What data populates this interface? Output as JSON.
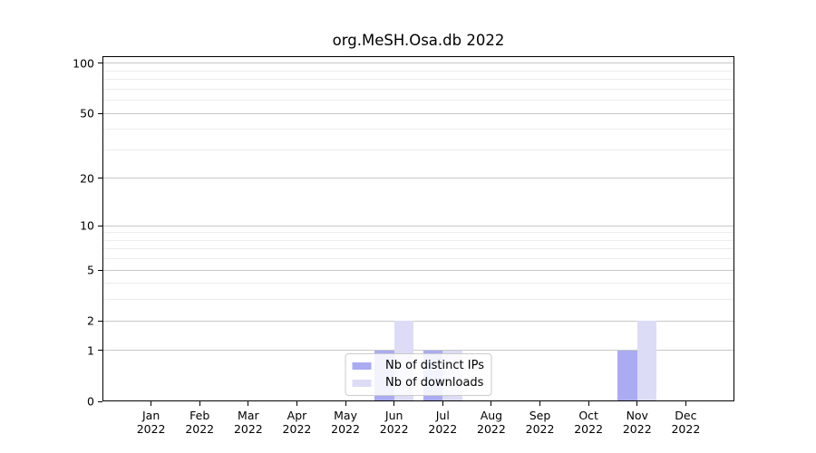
{
  "chart_data": {
    "type": "bar",
    "title": "org.MeSH.Osa.db 2022",
    "categories": [
      "Jan",
      "Feb",
      "Mar",
      "Apr",
      "May",
      "Jun",
      "Jul",
      "Aug",
      "Sep",
      "Oct",
      "Nov",
      "Dec"
    ],
    "category_year": "2022",
    "series": [
      {
        "name": "Nb of distinct IPs",
        "color": "#aaabf2",
        "values": [
          0,
          0,
          0,
          0,
          0,
          1,
          1,
          0,
          0,
          0,
          1,
          0
        ]
      },
      {
        "name": "Nb of downloads",
        "color": "#dcdcf7",
        "values": [
          0,
          0,
          0,
          0,
          0,
          2,
          1,
          0,
          0,
          0,
          2,
          0
        ]
      }
    ],
    "yscale": "log1p",
    "ylim": [
      0,
      110.5
    ],
    "yticks": [
      0,
      1,
      2,
      5,
      10,
      20,
      50,
      100
    ],
    "minor_gridlines": [
      3,
      4,
      6,
      7,
      8,
      9,
      30,
      40,
      60,
      70,
      80,
      90
    ],
    "grid": true,
    "legend_position": "lower center"
  },
  "colors": {
    "axis": "#000000",
    "grid_major": "#c8c8c8",
    "grid_minor": "#ececec",
    "legend_border": "#cccccc",
    "legend_bg": "rgba(255,255,255,0.85)",
    "background": "#ffffff",
    "text": "#000000"
  }
}
